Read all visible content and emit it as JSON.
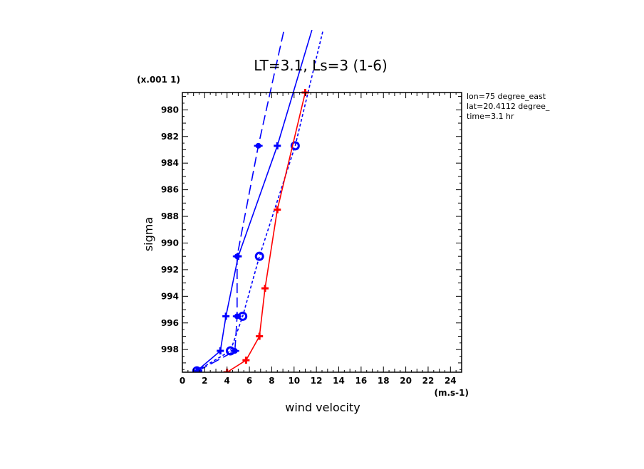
{
  "chart_data": {
    "type": "line",
    "title": "LT=3.1, Ls=3 (1-6)",
    "xlabel": "wind velocity",
    "ylabel": "sigma",
    "x_unit": "(m.s-1)",
    "y_multiplier": "(x.001 1)",
    "xlim": [
      0,
      25
    ],
    "ylim": [
      999.7,
      978.7
    ],
    "x_ticks": [
      "0",
      "2",
      "4",
      "6",
      "8",
      "10",
      "12",
      "14",
      "16",
      "18",
      "20",
      "22",
      "24"
    ],
    "y_ticks": [
      "980",
      "982",
      "984",
      "986",
      "988",
      "990",
      "992",
      "994",
      "996",
      "998"
    ],
    "info": [
      "lon=75 degree_east",
      "lat=20.4112 degree_",
      "time=3.1 hr"
    ],
    "grid": false,
    "colors": {
      "blue": "#0000ff",
      "red": "#ff0000"
    },
    "series": [
      {
        "color": "#0000ff",
        "line": "solid",
        "marker": "plus",
        "points": [
          [
            1.3,
            999.6
          ],
          [
            3.4,
            998.1
          ],
          [
            3.9,
            995.5
          ],
          [
            5.0,
            991.0
          ],
          [
            8.5,
            982.7
          ],
          [
            11.6,
            974.0
          ]
        ]
      },
      {
        "color": "#0000ff",
        "line": "long-dash",
        "marker": "filled-circle",
        "points": [
          [
            1.4,
            999.6
          ],
          [
            4.7,
            998.1
          ],
          [
            4.9,
            995.5
          ],
          [
            4.9,
            991.0
          ],
          [
            6.8,
            982.7
          ],
          [
            9.1,
            974.0
          ]
        ]
      },
      {
        "color": "#0000ff",
        "line": "short-dash",
        "marker": "ring",
        "points": [
          [
            1.3,
            999.6
          ],
          [
            4.3,
            998.1
          ],
          [
            5.4,
            995.5
          ],
          [
            6.9,
            991.0
          ],
          [
            10.1,
            982.7
          ],
          [
            12.6,
            974.0
          ]
        ]
      },
      {
        "color": "#ff0000",
        "line": "solid",
        "marker": "plus",
        "points": [
          [
            4.0,
            999.7
          ],
          [
            5.7,
            998.8
          ],
          [
            6.9,
            997.0
          ],
          [
            7.4,
            993.4
          ],
          [
            8.5,
            987.5
          ],
          [
            11.0,
            978.7
          ]
        ]
      }
    ]
  }
}
